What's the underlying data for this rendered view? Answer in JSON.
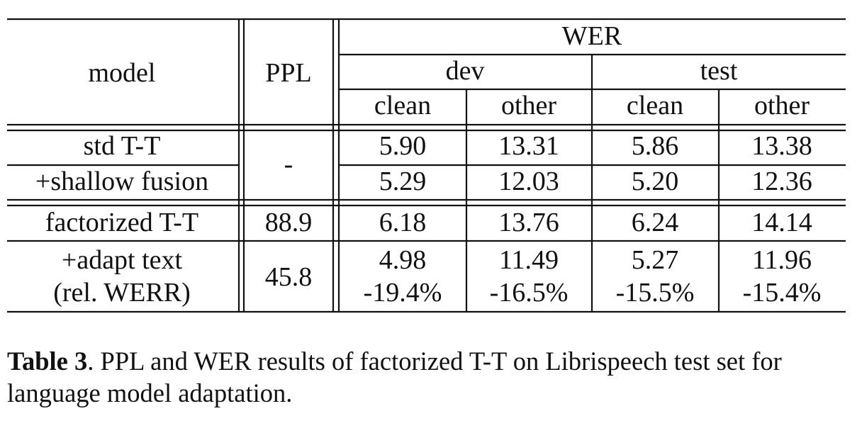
{
  "table": {
    "header": {
      "model": "model",
      "ppl": "PPL",
      "wer": "WER",
      "dev": "dev",
      "test": "test",
      "dev_clean": "clean",
      "dev_other": "other",
      "test_clean": "clean",
      "test_other": "other"
    },
    "rows": [
      {
        "model": "std T-T",
        "ppl": "-",
        "dev_clean": "5.90",
        "dev_other": "13.31",
        "test_clean": "5.86",
        "test_other": "13.38"
      },
      {
        "model": "+shallow fusion",
        "ppl": "-",
        "dev_clean": "5.29",
        "dev_other": "12.03",
        "test_clean": "5.20",
        "test_other": "12.36"
      },
      {
        "model": "factorized T-T",
        "ppl": "88.9",
        "dev_clean": "6.18",
        "dev_other": "13.76",
        "test_clean": "6.24",
        "test_other": "14.14"
      },
      {
        "model": "+adapt text",
        "model_line2": "(rel. WERR)",
        "ppl": "45.8",
        "dev_clean": "4.98",
        "dev_other": "11.49",
        "test_clean": "5.27",
        "test_other": "11.96",
        "dev_clean_rel": "-19.4%",
        "dev_other_rel": "-16.5%",
        "test_clean_rel": "-15.5%",
        "test_other_rel": "-15.4%"
      }
    ]
  },
  "caption": {
    "label": "Table 3",
    "text": ". PPL and WER results of factorized T-T on Librispeech test set for language model adaptation."
  }
}
